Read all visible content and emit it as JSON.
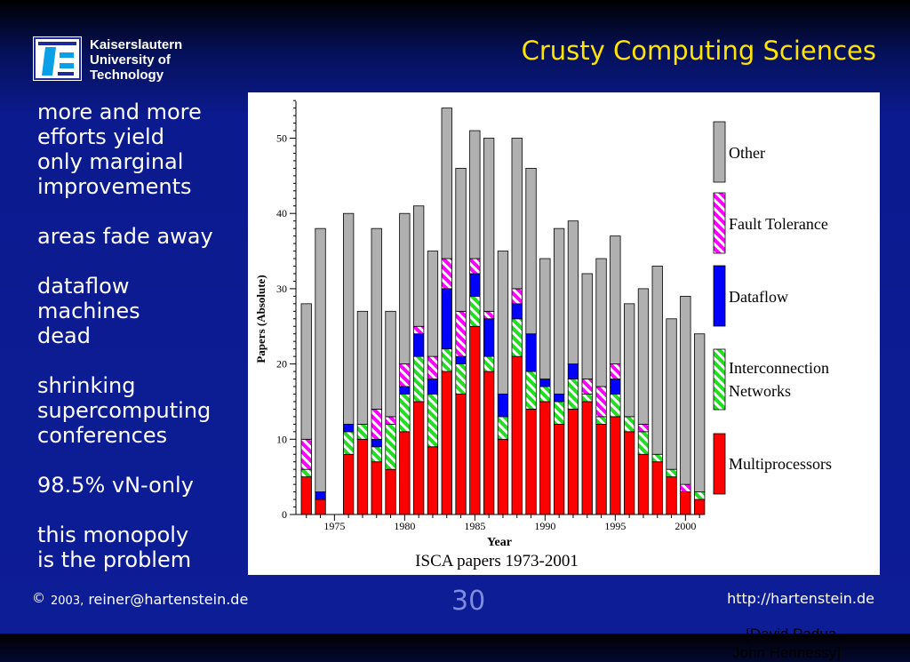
{
  "slide": {
    "title": "Crusty Computing Sciences",
    "logo_text": [
      "Kaiserslautern",
      "University of",
      "Technology"
    ],
    "bullets": [
      "more and more\nefforts yield\nonly marginal\nimprovements",
      "areas fade away",
      "dataflow\nmachines\ndead",
      "shrinking\nsupercomputing\nconferences",
      "98.5% vN-only",
      "this monopoly\nis the problem"
    ],
    "credit_line1": "[David Padua,",
    "credit_line2": "John Hennessy]",
    "footer_copyright": "©",
    "footer_year": "2003,",
    "footer_email": "reiner@hartenstein.de",
    "page_number": "30",
    "footer_url": "http://hartenstein.de"
  },
  "colors": {
    "background": "#0d1d96",
    "title": "#ffe400",
    "page_number": "#7f8bdc",
    "multiprocessors": "#ff0000",
    "interconnection": "#22dd22",
    "dataflow": "#0000ff",
    "fault_tolerance": "#ff00ff",
    "other": "#b0b0b0"
  },
  "chart_data": {
    "type": "bar",
    "stacked": true,
    "title": "ISCA papers 1973-2001",
    "xlabel": "Year",
    "ylabel": "Papers (Absolute)",
    "ylim": [
      0,
      55
    ],
    "yticks": [
      0,
      10,
      20,
      30,
      40,
      50
    ],
    "xticks": [
      1975,
      1980,
      1985,
      1990,
      1995,
      2000
    ],
    "x": [
      1973,
      1974,
      1975,
      1976,
      1977,
      1978,
      1979,
      1980,
      1981,
      1982,
      1983,
      1984,
      1985,
      1986,
      1987,
      1988,
      1989,
      1990,
      1991,
      1992,
      1993,
      1994,
      1995,
      1996,
      1997,
      1998,
      1999,
      2000,
      2001
    ],
    "legend_position": "right",
    "series": [
      {
        "name": "Multiprocessors",
        "color": "#ff0000",
        "pattern": "solid",
        "values": [
          5,
          2,
          0,
          8,
          10,
          7,
          6,
          11,
          15,
          9,
          19,
          16,
          25,
          19,
          10,
          21,
          14,
          15,
          12,
          14,
          15,
          12,
          13,
          11,
          8,
          7,
          5,
          3,
          2
        ]
      },
      {
        "name": "Interconnection Networks",
        "color": "#22dd22",
        "pattern": "hatch",
        "values": [
          1,
          0,
          0,
          3,
          2,
          2,
          6,
          5,
          6,
          7,
          3,
          4,
          4,
          2,
          3,
          5,
          5,
          2,
          3,
          4,
          1,
          1,
          3,
          2,
          3,
          1,
          1,
          0,
          1
        ]
      },
      {
        "name": "Dataflow",
        "color": "#0000ff",
        "pattern": "solid",
        "values": [
          0,
          1,
          0,
          1,
          0,
          1,
          0,
          1,
          3,
          2,
          8,
          1,
          3,
          5,
          3,
          2,
          5,
          1,
          1,
          2,
          0,
          0,
          2,
          0,
          0,
          0,
          0,
          0,
          0
        ]
      },
      {
        "name": "Fault Tolerance",
        "color": "#ff00ff",
        "pattern": "hatch",
        "values": [
          4,
          0,
          0,
          0,
          0,
          4,
          1,
          3,
          1,
          3,
          4,
          6,
          2,
          1,
          0,
          2,
          0,
          0,
          0,
          0,
          2,
          4,
          2,
          0,
          1,
          0,
          0,
          1,
          0
        ]
      },
      {
        "name": "Other",
        "color": "#b0b0b0",
        "pattern": "solid",
        "values": [
          18,
          35,
          0,
          28,
          15,
          24,
          14,
          20,
          16,
          14,
          20,
          19,
          17,
          23,
          19,
          20,
          22,
          16,
          22,
          19,
          14,
          17,
          17,
          15,
          18,
          25,
          20,
          25,
          21
        ]
      }
    ]
  }
}
